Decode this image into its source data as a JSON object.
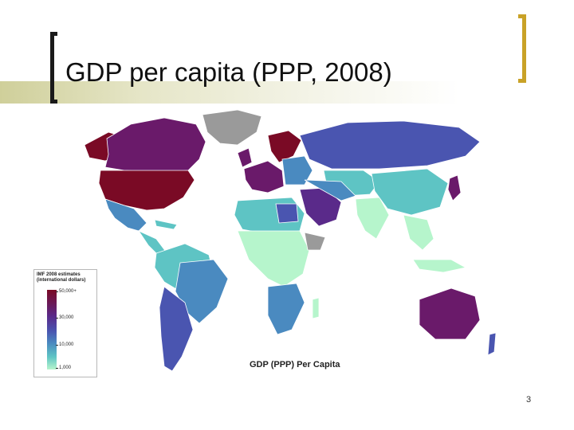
{
  "slide": {
    "title": "GDP per capita (PPP, 2008)",
    "page_number": "3"
  },
  "map": {
    "caption": "GDP (PPP) Per Capita",
    "legend": {
      "title": "IMF 2008 estimates (international dollars)",
      "ticks": [
        "50,000+",
        "30,000",
        "10,000",
        "1,000"
      ]
    },
    "colors": {
      "highest": "#7a0a25",
      "high": "#6a1a6a",
      "upper_middle": "#4a55b0",
      "middle": "#4a8ac0",
      "lower_middle": "#5ec4c4",
      "low": "#b6f5cc",
      "no_data": "#9a9a9a",
      "accent_bracket": "#c9a227"
    }
  }
}
